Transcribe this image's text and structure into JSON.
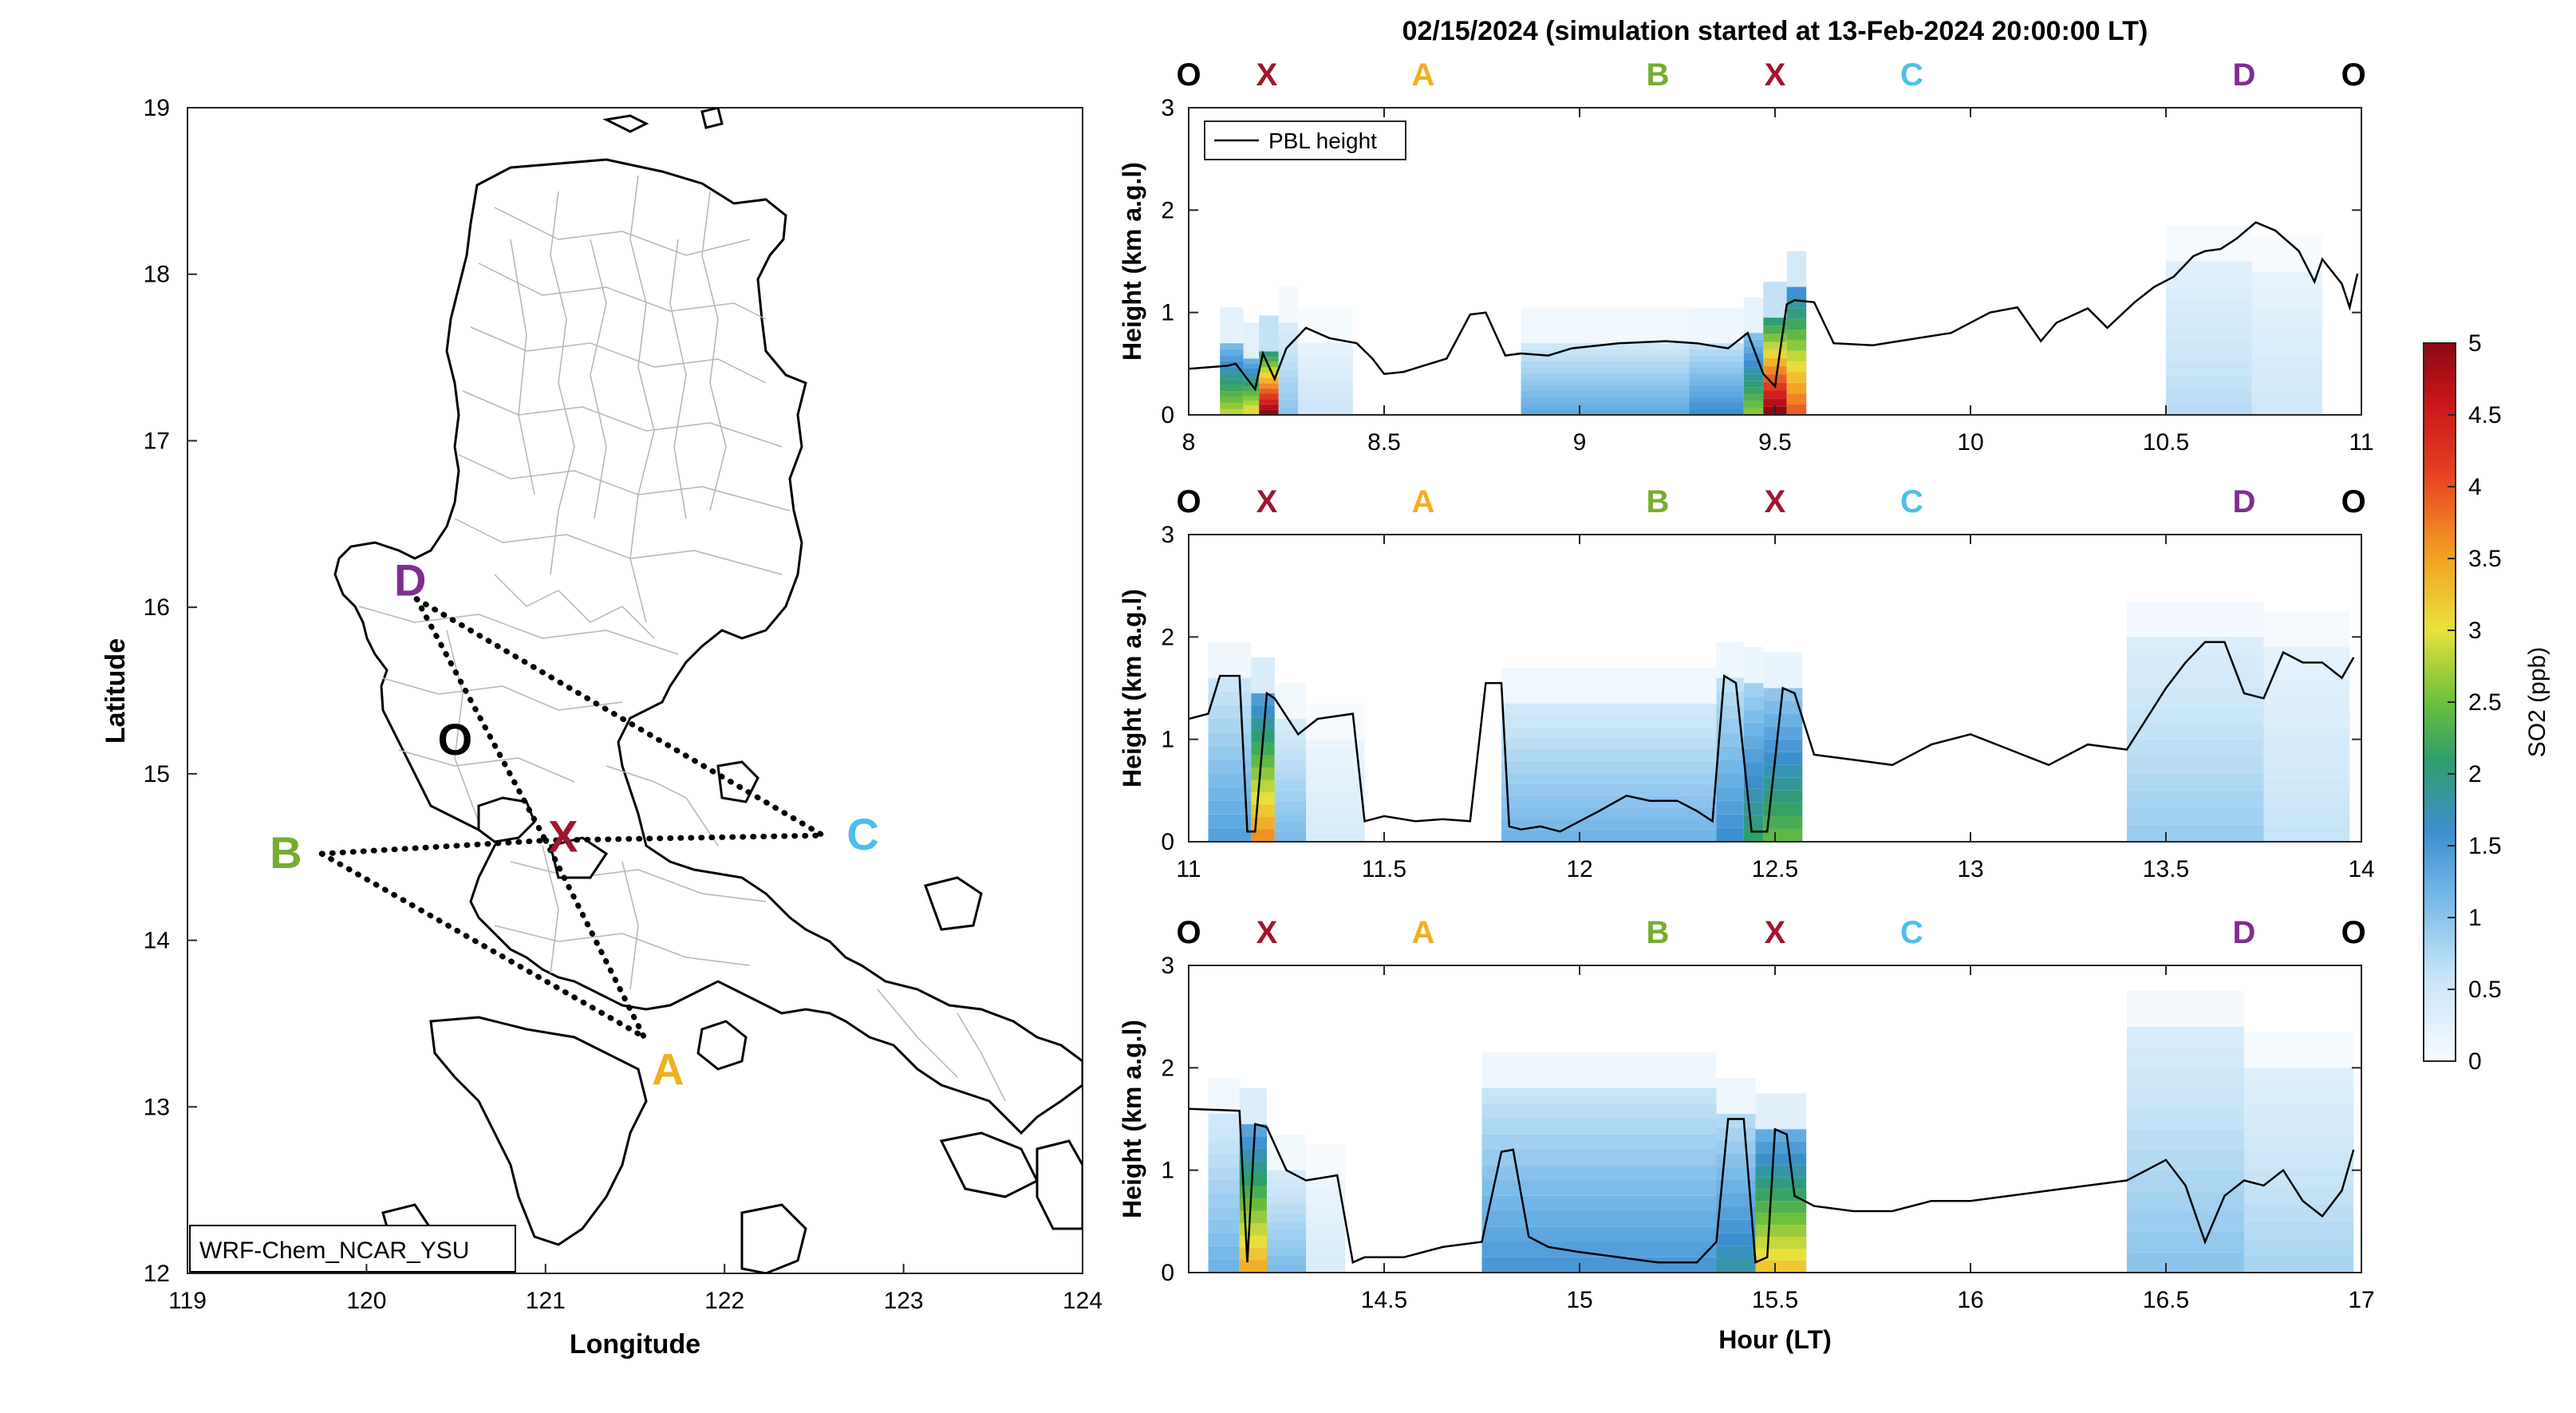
{
  "title": "02/15/2024 (simulation started at 13-Feb-2024 20:00:00 LT)",
  "colors": {
    "O": "#000000",
    "X": "#A2142F",
    "A": "#EDB120",
    "B": "#77AC30",
    "C": "#4DBEEE",
    "D": "#7E2F8E",
    "pbl": "#000000",
    "track": "#000000"
  },
  "map": {
    "xlabel": "Longitude",
    "ylabel": "Latitude",
    "xlim": [
      119,
      124
    ],
    "ylim": [
      12,
      19
    ],
    "xticks": [
      "119",
      "120",
      "121",
      "122",
      "123",
      "124"
    ],
    "yticks": [
      "12",
      "13",
      "14",
      "15",
      "16",
      "17",
      "18",
      "19"
    ],
    "model_label": "WRF-Chem_NCAR_YSU",
    "points": [
      {
        "name": "D",
        "lon": 120.28,
        "lat": 16.05
      },
      {
        "name": "O",
        "lon": 120.45,
        "lat": 15.2
      },
      {
        "name": "X",
        "lon": 121.0,
        "lat": 14.6
      },
      {
        "name": "C",
        "lon": 122.55,
        "lat": 14.63
      },
      {
        "name": "B",
        "lon": 119.75,
        "lat": 14.52
      },
      {
        "name": "A",
        "lon": 121.55,
        "lat": 13.42
      }
    ],
    "tracks": [
      [
        "D",
        "X"
      ],
      [
        "D",
        "C"
      ],
      [
        "X",
        "C"
      ],
      [
        "B",
        "X"
      ],
      [
        "B",
        "A"
      ],
      [
        "X",
        "A"
      ]
    ]
  },
  "colorbar": {
    "label": "SO2 (ppb)",
    "range": [
      0,
      5
    ],
    "ticks": [
      "0",
      "0.5",
      "1",
      "1.5",
      "2",
      "2.5",
      "3",
      "3.5",
      "4",
      "4.5",
      "5"
    ]
  },
  "chart_data": {
    "type": "heatmap",
    "title": "02/15/2024 (simulation started at 13-Feb-2024 20:00:00 LT)",
    "ylabel": "Height (km a.g.l)",
    "xlabel": "Hour (LT)",
    "legend": {
      "entry": "PBL height",
      "placement": "top-left"
    },
    "color_variable": "SO2 (ppb)",
    "waypoints": [
      "O",
      "X",
      "A",
      "B",
      "X",
      "C",
      "D",
      "O"
    ],
    "panels": [
      {
        "xlim": [
          8,
          11
        ],
        "ylim": [
          0,
          3
        ],
        "xticks": [
          "8",
          "8.5",
          "9",
          "9.5",
          "10",
          "10.5",
          "11"
        ],
        "yticks": [
          "0",
          "1",
          "2",
          "3"
        ],
        "waypoint_hours": [
          8.0,
          8.2,
          8.6,
          9.2,
          9.5,
          9.85,
          10.7,
          10.98
        ],
        "pbl": {
          "x": [
            8.0,
            8.1,
            8.12,
            8.17,
            8.19,
            8.22,
            8.25,
            8.3,
            8.36,
            8.43,
            8.47,
            8.5,
            8.55,
            8.66,
            8.72,
            8.76,
            8.81,
            8.85,
            8.92,
            8.98,
            9.1,
            9.22,
            9.3,
            9.38,
            9.43,
            9.47,
            9.5,
            9.53,
            9.55,
            9.6,
            9.65,
            9.75,
            9.85,
            9.95,
            10.05,
            10.12,
            10.18,
            10.22,
            10.3,
            10.35,
            10.42,
            10.47,
            10.52,
            10.57,
            10.6,
            10.64,
            10.68,
            10.73,
            10.78,
            10.84,
            10.88,
            10.9,
            10.95,
            10.97,
            10.99
          ],
          "y": [
            0.45,
            0.48,
            0.5,
            0.25,
            0.6,
            0.35,
            0.65,
            0.85,
            0.75,
            0.7,
            0.55,
            0.4,
            0.42,
            0.55,
            0.98,
            1.0,
            0.58,
            0.6,
            0.58,
            0.65,
            0.7,
            0.72,
            0.7,
            0.65,
            0.8,
            0.4,
            0.28,
            1.08,
            1.12,
            1.1,
            0.7,
            0.68,
            0.74,
            0.8,
            1.0,
            1.05,
            0.72,
            0.9,
            1.04,
            0.85,
            1.1,
            1.25,
            1.35,
            1.55,
            1.6,
            1.62,
            1.72,
            1.88,
            1.8,
            1.6,
            1.3,
            1.52,
            1.28,
            1.05,
            1.38
          ]
        },
        "so2_columns": [
          {
            "x0": 8.08,
            "x1": 8.14,
            "top": 0.7,
            "max": 2.8
          },
          {
            "x0": 8.14,
            "x1": 8.18,
            "top": 0.55,
            "max": 3.1
          },
          {
            "x0": 8.18,
            "x1": 8.23,
            "top": 0.62,
            "max": 5.0
          },
          {
            "x0": 8.23,
            "x1": 8.28,
            "top": 0.9,
            "max": 1.0
          },
          {
            "x0": 8.28,
            "x1": 8.42,
            "top": 0.7,
            "max": 0.55
          },
          {
            "x0": 8.85,
            "x1": 9.28,
            "top": 0.7,
            "max": 1.3
          },
          {
            "x0": 9.28,
            "x1": 9.42,
            "top": 0.7,
            "max": 1.6
          },
          {
            "x0": 9.42,
            "x1": 9.47,
            "top": 0.8,
            "max": 2.6
          },
          {
            "x0": 9.47,
            "x1": 9.53,
            "top": 0.95,
            "max": 5.0
          },
          {
            "x0": 9.53,
            "x1": 9.58,
            "top": 1.25,
            "max": 3.9
          },
          {
            "x0": 10.5,
            "x1": 10.72,
            "top": 1.5,
            "max": 0.7
          },
          {
            "x0": 10.72,
            "x1": 10.9,
            "top": 1.4,
            "max": 0.5
          }
        ]
      },
      {
        "xlim": [
          11,
          14
        ],
        "ylim": [
          0,
          3
        ],
        "xticks": [
          "11",
          "11.5",
          "12",
          "12.5",
          "13",
          "13.5",
          "14"
        ],
        "yticks": [
          "0",
          "1",
          "2",
          "3"
        ],
        "waypoint_hours": [
          11.0,
          11.2,
          11.6,
          12.2,
          12.5,
          12.85,
          13.7,
          13.98
        ],
        "pbl": {
          "x": [
            11.0,
            11.05,
            11.08,
            11.13,
            11.15,
            11.17,
            11.2,
            11.22,
            11.28,
            11.33,
            11.42,
            11.45,
            11.5,
            11.58,
            11.65,
            11.72,
            11.76,
            11.8,
            11.82,
            11.85,
            11.9,
            11.95,
            12.0,
            12.05,
            12.12,
            12.18,
            12.25,
            12.3,
            12.34,
            12.37,
            12.4,
            12.44,
            12.48,
            12.52,
            12.55,
            12.6,
            12.7,
            12.8,
            12.9,
            13.0,
            13.1,
            13.2,
            13.3,
            13.4,
            13.45,
            13.5,
            13.55,
            13.6,
            13.65,
            13.7,
            13.75,
            13.8,
            13.85,
            13.9,
            13.95,
            13.98
          ],
          "y": [
            1.2,
            1.25,
            1.62,
            1.62,
            0.1,
            0.1,
            1.45,
            1.4,
            1.05,
            1.2,
            1.25,
            0.2,
            0.25,
            0.2,
            0.22,
            0.2,
            1.55,
            1.55,
            0.15,
            0.12,
            0.15,
            0.1,
            0.2,
            0.3,
            0.45,
            0.4,
            0.4,
            0.3,
            0.2,
            1.62,
            1.55,
            0.1,
            0.1,
            1.5,
            1.45,
            0.85,
            0.8,
            0.75,
            0.95,
            1.05,
            0.9,
            0.75,
            0.95,
            0.9,
            1.2,
            1.5,
            1.75,
            1.95,
            1.95,
            1.45,
            1.4,
            1.85,
            1.75,
            1.75,
            1.6,
            1.8
          ]
        },
        "so2_columns": [
          {
            "x0": 11.05,
            "x1": 11.16,
            "top": 1.6,
            "max": 1.4
          },
          {
            "x0": 11.16,
            "x1": 11.22,
            "top": 1.45,
            "max": 3.6
          },
          {
            "x0": 11.22,
            "x1": 11.3,
            "top": 1.2,
            "max": 1.1
          },
          {
            "x0": 11.3,
            "x1": 11.45,
            "top": 1.0,
            "max": 0.4
          },
          {
            "x0": 11.8,
            "x1": 12.35,
            "top": 1.35,
            "max": 1.2
          },
          {
            "x0": 12.35,
            "x1": 12.42,
            "top": 1.6,
            "max": 1.6
          },
          {
            "x0": 12.42,
            "x1": 12.47,
            "top": 1.55,
            "max": 2.1
          },
          {
            "x0": 12.47,
            "x1": 12.57,
            "top": 1.5,
            "max": 2.4
          },
          {
            "x0": 13.4,
            "x1": 13.75,
            "top": 2.0,
            "max": 0.9
          },
          {
            "x0": 13.75,
            "x1": 13.97,
            "top": 1.9,
            "max": 0.6
          }
        ]
      },
      {
        "xlim": [
          14,
          17
        ],
        "ylim": [
          0,
          3
        ],
        "xticks": [
          "14.5",
          "15",
          "15.5",
          "16",
          "16.5",
          "17"
        ],
        "yticks": [
          "0",
          "1",
          "2",
          "3"
        ],
        "waypoint_hours": [
          14.0,
          14.2,
          14.6,
          15.2,
          15.5,
          15.85,
          16.7,
          16.98
        ],
        "pbl": {
          "x": [
            14.0,
            14.13,
            14.15,
            14.17,
            14.2,
            14.25,
            14.3,
            14.38,
            14.42,
            14.45,
            14.55,
            14.65,
            14.75,
            14.8,
            14.83,
            14.87,
            14.92,
            15.0,
            15.1,
            15.2,
            15.3,
            15.35,
            15.38,
            15.42,
            15.45,
            15.48,
            15.5,
            15.53,
            15.55,
            15.6,
            15.7,
            15.8,
            15.9,
            16.0,
            16.1,
            16.2,
            16.3,
            16.4,
            16.45,
            16.5,
            16.55,
            16.6,
            16.65,
            16.7,
            16.75,
            16.8,
            16.85,
            16.9,
            16.95,
            16.98
          ],
          "y": [
            1.6,
            1.58,
            0.1,
            1.45,
            1.42,
            1.0,
            0.9,
            0.95,
            0.1,
            0.15,
            0.15,
            0.25,
            0.3,
            1.18,
            1.2,
            0.35,
            0.25,
            0.2,
            0.15,
            0.1,
            0.1,
            0.3,
            1.5,
            1.5,
            0.1,
            0.15,
            1.4,
            1.35,
            0.75,
            0.65,
            0.6,
            0.6,
            0.7,
            0.7,
            0.75,
            0.8,
            0.85,
            0.9,
            1.0,
            1.1,
            0.85,
            0.3,
            0.75,
            0.9,
            0.85,
            1.0,
            0.7,
            0.55,
            0.8,
            1.2
          ]
        },
        "so2_columns": [
          {
            "x0": 14.05,
            "x1": 14.13,
            "top": 1.55,
            "max": 1.2
          },
          {
            "x0": 14.13,
            "x1": 14.2,
            "top": 1.45,
            "max": 3.4
          },
          {
            "x0": 14.2,
            "x1": 14.3,
            "top": 1.0,
            "max": 1.1
          },
          {
            "x0": 14.3,
            "x1": 14.4,
            "top": 0.9,
            "max": 0.4
          },
          {
            "x0": 14.75,
            "x1": 15.35,
            "top": 1.8,
            "max": 1.5
          },
          {
            "x0": 15.35,
            "x1": 15.45,
            "top": 1.55,
            "max": 1.8
          },
          {
            "x0": 15.45,
            "x1": 15.58,
            "top": 1.4,
            "max": 3.2
          },
          {
            "x0": 16.4,
            "x1": 16.7,
            "top": 2.4,
            "max": 1.0
          },
          {
            "x0": 16.7,
            "x1": 16.98,
            "top": 2.0,
            "max": 0.8
          }
        ]
      }
    ]
  }
}
